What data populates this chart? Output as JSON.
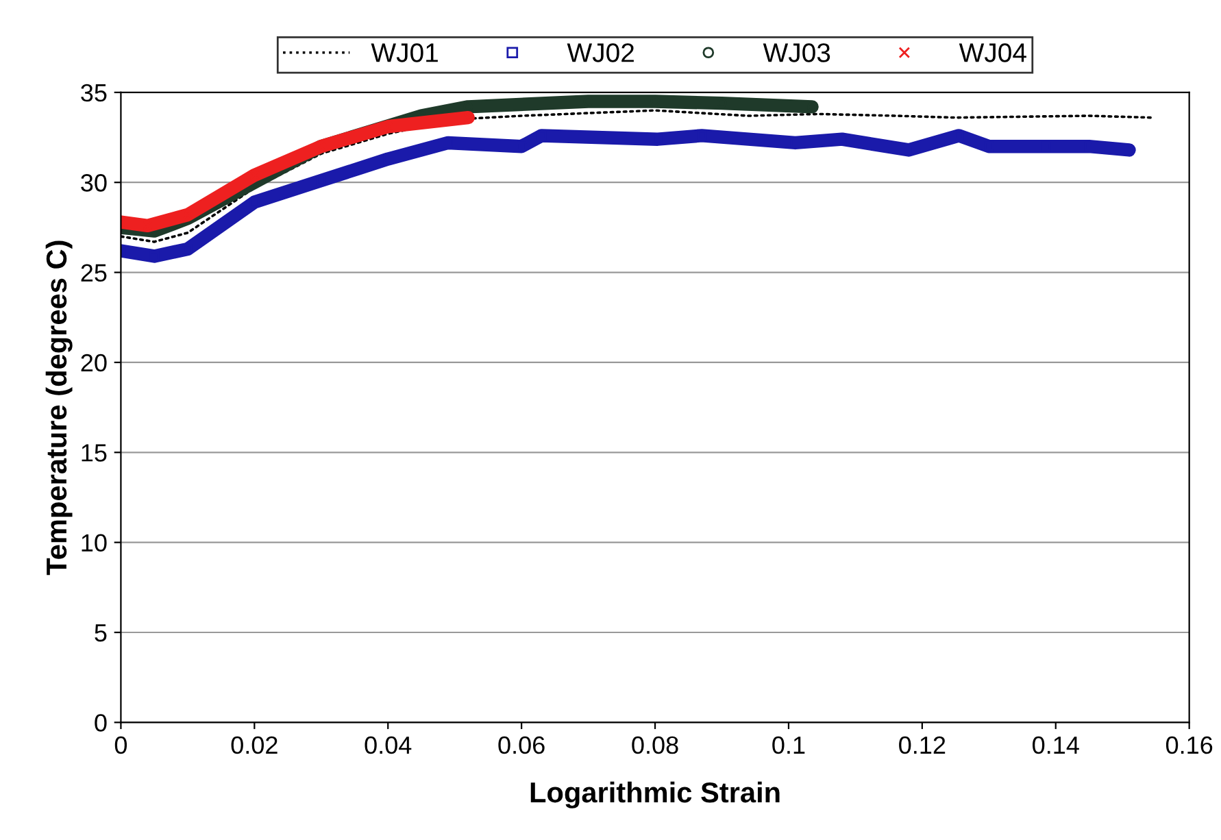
{
  "chart_data": {
    "type": "line",
    "xlabel": "Logarithmic Strain",
    "ylabel": "Temperature (degrees C)",
    "xlim": [
      0,
      0.16
    ],
    "xticks": [
      0,
      0.02,
      0.04,
      0.06,
      0.08,
      0.1,
      0.12,
      0.14,
      0.16
    ],
    "ylim": [
      0,
      35
    ],
    "yticks": [
      0,
      5,
      10,
      15,
      20,
      25,
      30,
      35
    ],
    "grid": "y",
    "legend": "top",
    "series": [
      {
        "name": "WJ01",
        "color": "#000000",
        "marker": "none",
        "line_style": "dotted",
        "x": [
          0,
          0.005,
          0.01,
          0.02,
          0.03,
          0.04,
          0.05,
          0.06,
          0.08,
          0.094,
          0.1045,
          0.116,
          0.125,
          0.145,
          0.1544
        ],
        "values": [
          27.0,
          26.7,
          27.2,
          29.7,
          31.6,
          32.7,
          33.5,
          33.7,
          34.0,
          33.7,
          33.8,
          33.7,
          33.6,
          33.7,
          33.6
        ]
      },
      {
        "name": "WJ02",
        "color": "#1a1aaa",
        "marker": "square",
        "line_style": "solid",
        "x": [
          0,
          0.005,
          0.01,
          0.02,
          0.03,
          0.04,
          0.049,
          0.06,
          0.063,
          0.0804,
          0.087,
          0.101,
          0.108,
          0.118,
          0.1255,
          0.13,
          0.1385,
          0.145,
          0.151
        ],
        "values": [
          26.2,
          25.9,
          26.3,
          28.9,
          30.1,
          31.3,
          32.2,
          32.0,
          32.6,
          32.4,
          32.6,
          32.2,
          32.4,
          31.8,
          32.6,
          32.0,
          32.0,
          32.0,
          31.8
        ]
      },
      {
        "name": "WJ03",
        "color": "#1f3a2a",
        "marker": "circle",
        "line_style": "solid",
        "x": [
          0,
          0.005,
          0.01,
          0.02,
          0.03,
          0.045,
          0.052,
          0.07,
          0.08,
          0.09,
          0.1035
        ],
        "values": [
          27.5,
          27.3,
          28.0,
          30.0,
          32.0,
          33.7,
          34.2,
          34.5,
          34.5,
          34.4,
          34.2
        ]
      },
      {
        "name": "WJ04",
        "color": "#ee2020",
        "marker": "cross",
        "line_style": "solid",
        "x": [
          0,
          0.004,
          0.01,
          0.02,
          0.03,
          0.04,
          0.052
        ],
        "values": [
          27.8,
          27.6,
          28.2,
          30.4,
          32.0,
          33.1,
          33.6
        ]
      }
    ]
  }
}
